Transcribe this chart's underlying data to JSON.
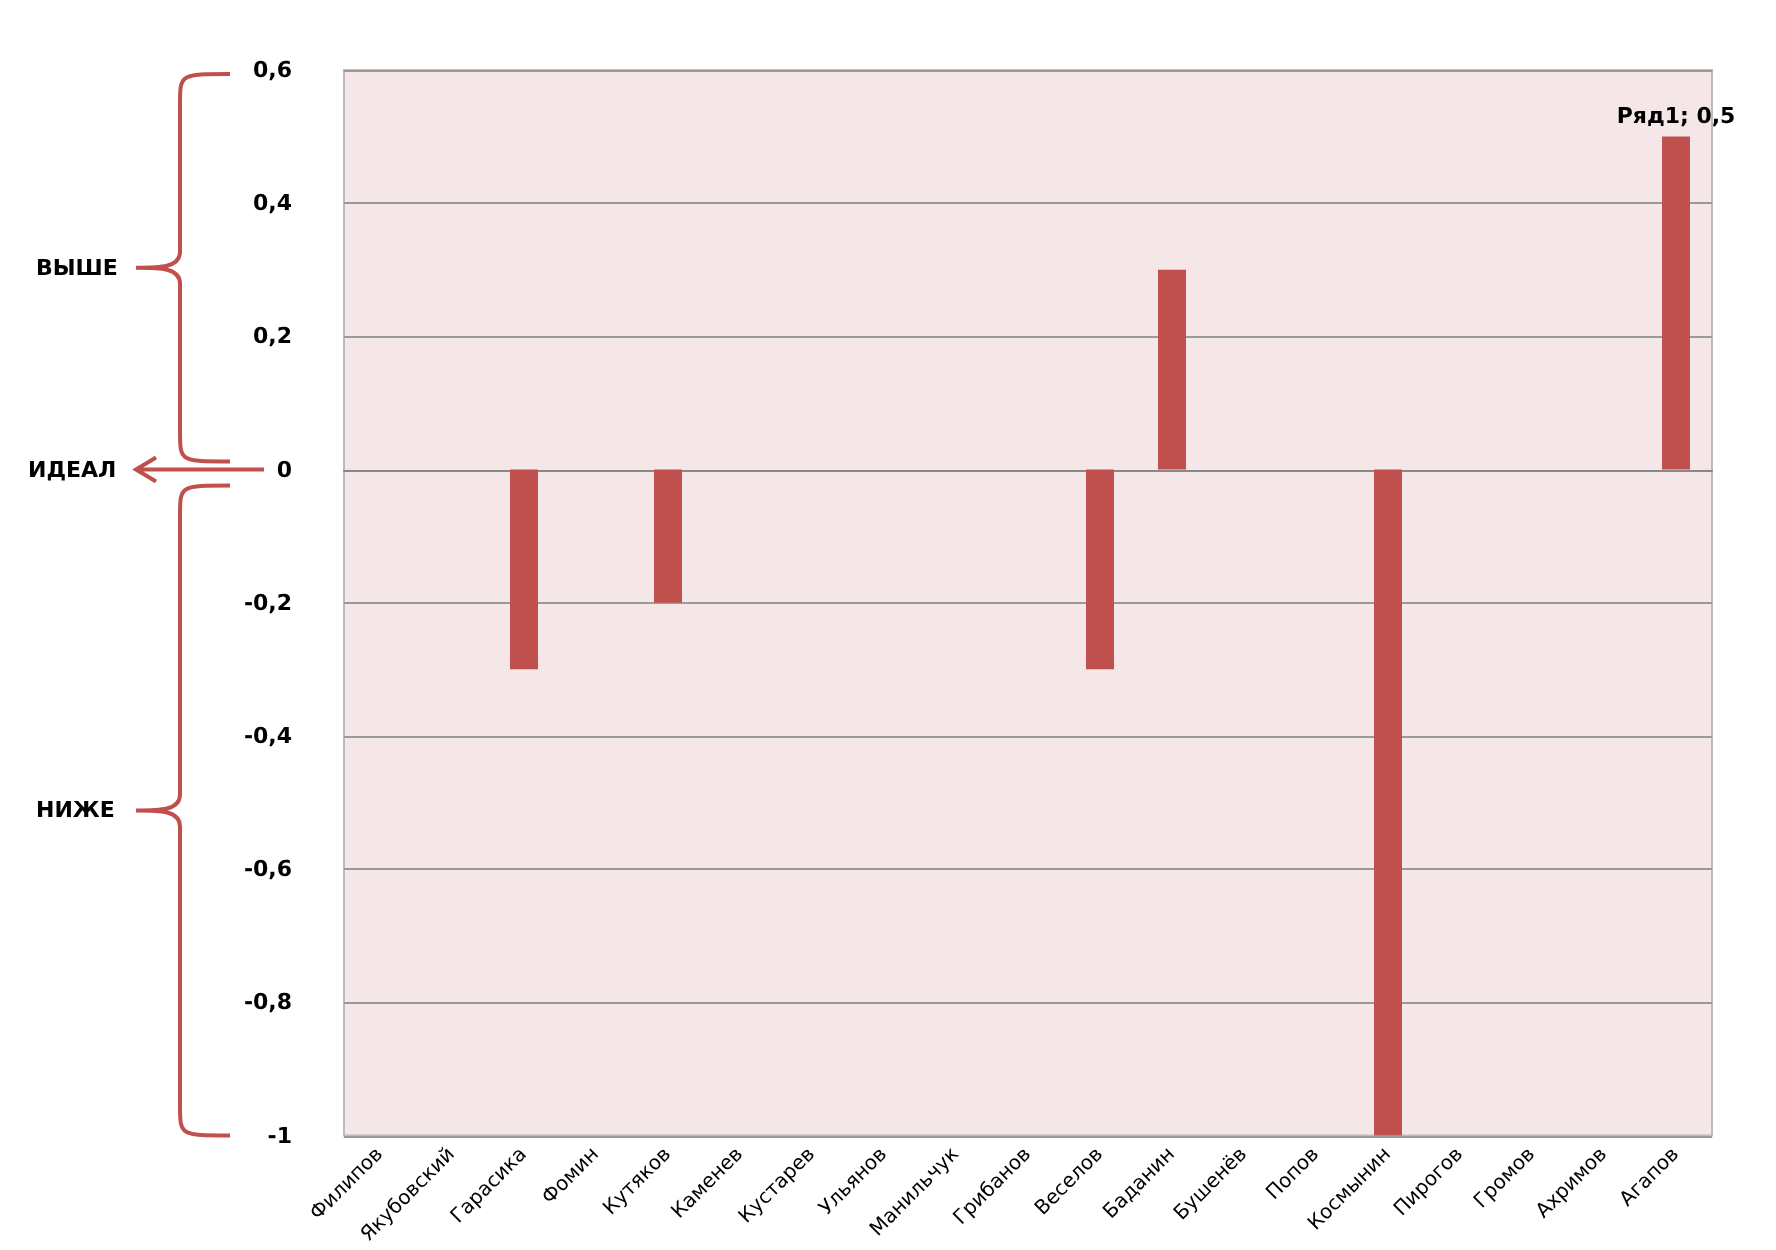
{
  "chart_data": {
    "type": "bar",
    "categories": [
      "Филипов",
      "Якубовский",
      "Гарасика",
      "Фомин",
      "Кутяков",
      "Каменев",
      "Кустарев",
      "Ульянов",
      "Манильчук",
      "Грибанов",
      "Веселов",
      "Баданин",
      "Бушенёв",
      "Попов",
      "Космынин",
      "Пирогов",
      "Громов",
      "Ахримов",
      "Агапов"
    ],
    "values": [
      0,
      0,
      -0.3,
      0,
      -0.2,
      0,
      0,
      0,
      0,
      0,
      -0.3,
      0.3,
      0,
      0,
      -1,
      0,
      0,
      0,
      0.5
    ],
    "value_labels": [
      null,
      null,
      null,
      null,
      null,
      null,
      null,
      null,
      null,
      null,
      null,
      null,
      null,
      null,
      null,
      null,
      null,
      null,
      "Ряд1; 0,5"
    ],
    "color": "#c0504d",
    "ylim": [
      -1,
      0.6
    ],
    "yticks": [
      {
        "value": -1,
        "label": "-1"
      },
      {
        "value": -0.8,
        "label": "-0,8"
      },
      {
        "value": -0.6,
        "label": "-0,6"
      },
      {
        "value": -0.4,
        "label": "-0,4"
      },
      {
        "value": -0.2,
        "label": "-0,2"
      },
      {
        "value": 0,
        "label": "0"
      },
      {
        "value": 0.2,
        "label": "0,2"
      },
      {
        "value": 0.4,
        "label": "0,4"
      },
      {
        "value": 0.6,
        "label": "0,6"
      }
    ],
    "grid": "y",
    "annotations": [
      "ВЫШЕ",
      "ИДЕАЛ",
      "НИЖЕ"
    ]
  }
}
